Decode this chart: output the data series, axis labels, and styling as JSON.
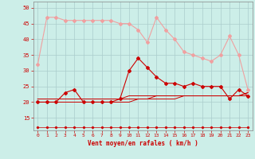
{
  "xlabel": "Vent moyen/en rafales ( km/h )",
  "background_color": "#cceee8",
  "grid_color": "#aacccc",
  "x": [
    0,
    1,
    2,
    3,
    4,
    5,
    6,
    7,
    8,
    9,
    10,
    11,
    12,
    13,
    14,
    15,
    16,
    17,
    18,
    19,
    20,
    21,
    22,
    23
  ],
  "series_gust": [
    32,
    47,
    47,
    46,
    46,
    46,
    46,
    46,
    46,
    45,
    45,
    43,
    39,
    47,
    43,
    40,
    36,
    35,
    34,
    33,
    35,
    41,
    35,
    24
  ],
  "series_wind": [
    20,
    20,
    20,
    23,
    24,
    20,
    20,
    20,
    20,
    21,
    30,
    34,
    31,
    28,
    26,
    26,
    25,
    26,
    25,
    25,
    25,
    21,
    24,
    22
  ],
  "series_mean1": [
    20,
    20,
    20,
    20,
    20,
    20,
    20,
    20,
    20,
    20,
    20,
    21,
    21,
    21,
    21,
    21,
    22,
    22,
    22,
    22,
    22,
    22,
    22,
    22
  ],
  "series_mean2": [
    21,
    21,
    21,
    21,
    21,
    21,
    21,
    21,
    21,
    21,
    21,
    21,
    21,
    22,
    22,
    22,
    22,
    22,
    22,
    22,
    22,
    22,
    22,
    23
  ],
  "series_mean3": [
    21,
    21,
    21,
    21,
    21,
    21,
    21,
    21,
    21,
    21,
    22,
    22,
    22,
    22,
    22,
    22,
    22,
    22,
    22,
    22,
    22,
    22,
    22,
    23
  ],
  "series_flat": [
    12,
    12,
    12,
    12,
    12,
    12,
    12,
    12,
    12,
    12,
    12,
    12,
    12,
    12,
    12,
    12,
    12,
    12,
    12,
    12,
    12,
    12,
    12,
    12
  ],
  "color_gust": "#f0a0a0",
  "color_wind": "#cc0000",
  "color_mean": "#cc0000",
  "color_flat": "#cc0000",
  "ylim": [
    11,
    52
  ],
  "yticks": [
    15,
    20,
    25,
    30,
    35,
    40,
    45,
    50
  ],
  "figwidth": 3.2,
  "figheight": 2.0,
  "dpi": 100
}
